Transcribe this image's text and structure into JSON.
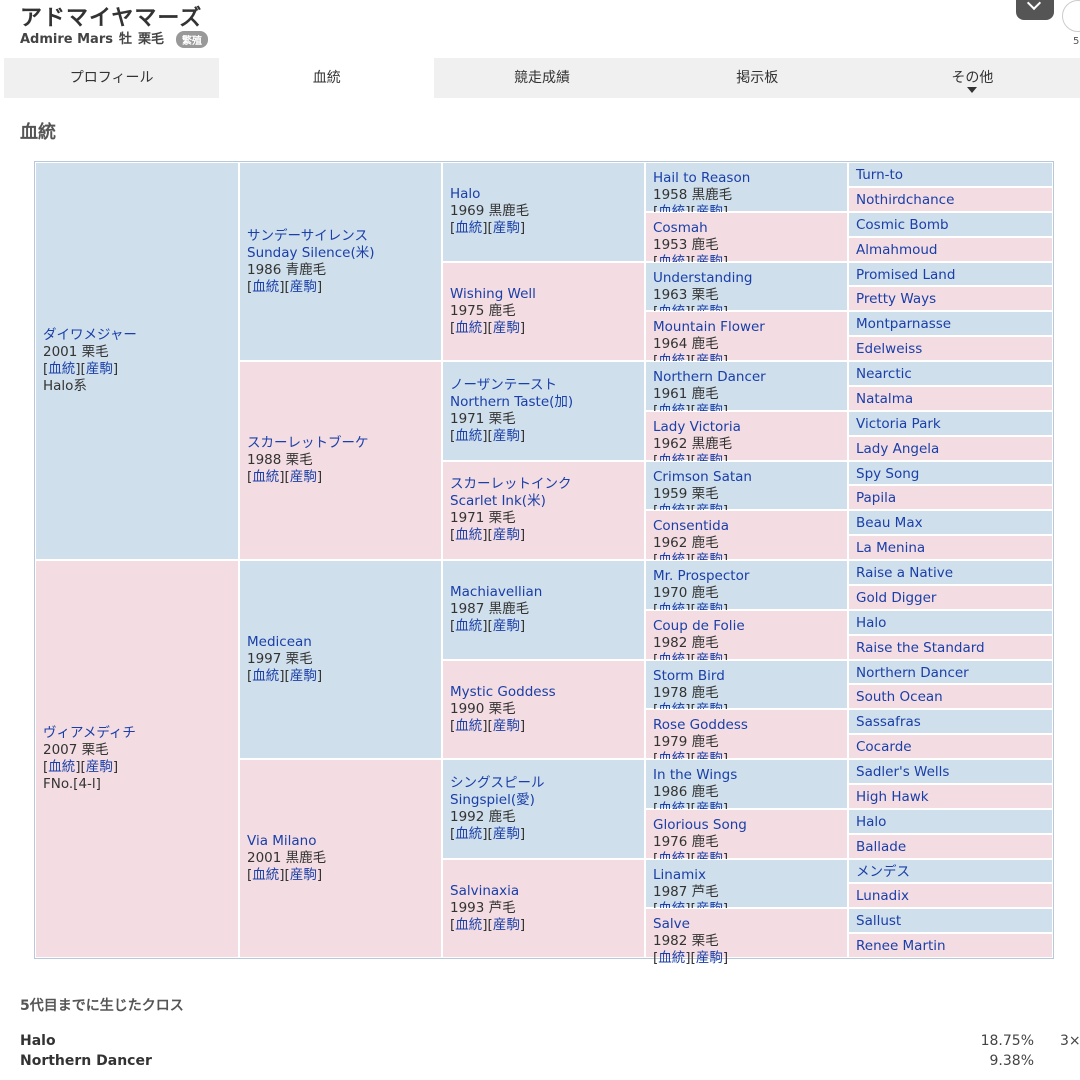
{
  "header": {
    "name_ja": "アドマイヤマーズ",
    "name_en": "Admire Mars",
    "sex": "牡",
    "color": "栗毛",
    "badge": "繁殖",
    "side_number": "5"
  },
  "tabs": [
    {
      "label": "プロフィール"
    },
    {
      "label": "血統"
    },
    {
      "label": "競走成績"
    },
    {
      "label": "掲示板"
    },
    {
      "label": "その他"
    }
  ],
  "section_title": "血統",
  "link_labels": {
    "pedigree": "血統",
    "progeny": "産駒"
  },
  "pedigree": {
    "g1": [
      {
        "name": "ダイワメジャー",
        "year_color": "2001 栗毛",
        "extra": "Halo系",
        "color": "blue"
      },
      {
        "name": "ヴィアメディチ",
        "year_color": "2007 栗毛",
        "extra": "FNo.[4-l]",
        "color": "pink"
      }
    ],
    "g2": [
      {
        "name": "サンデーサイレンス",
        "name2": "Sunday Silence(米)",
        "year_color": "1986 青鹿毛",
        "color": "blue"
      },
      {
        "name": "スカーレットブーケ",
        "year_color": "1988 栗毛",
        "color": "pink"
      },
      {
        "name": "Medicean",
        "year_color": "1997 栗毛",
        "color": "blue"
      },
      {
        "name": "Via Milano",
        "year_color": "2001 黒鹿毛",
        "color": "pink"
      }
    ],
    "g3": [
      {
        "name": "Halo",
        "year_color": "1969 黒鹿毛",
        "color": "blue"
      },
      {
        "name": "Wishing Well",
        "year_color": "1975 鹿毛",
        "color": "pink"
      },
      {
        "name": "ノーザンテースト",
        "name2": "Northern Taste(加)",
        "year_color": "1971 栗毛",
        "color": "blue"
      },
      {
        "name": "スカーレットインク",
        "name2": "Scarlet Ink(米)",
        "year_color": "1971 栗毛",
        "color": "pink"
      },
      {
        "name": "Machiavellian",
        "year_color": "1987 黒鹿毛",
        "color": "blue"
      },
      {
        "name": "Mystic Goddess",
        "year_color": "1990 栗毛",
        "color": "pink"
      },
      {
        "name": "シングスピール",
        "name2": "Singspiel(愛)",
        "year_color": "1992 鹿毛",
        "color": "blue"
      },
      {
        "name": "Salvinaxia",
        "year_color": "1993 芦毛",
        "color": "pink"
      }
    ],
    "g4": [
      {
        "name": "Hail to Reason",
        "year_color": "1958 黒鹿毛",
        "color": "blue"
      },
      {
        "name": "Cosmah",
        "year_color": "1953 鹿毛",
        "color": "pink"
      },
      {
        "name": "Understanding",
        "year_color": "1963 栗毛",
        "color": "blue"
      },
      {
        "name": "Mountain Flower",
        "year_color": "1964 鹿毛",
        "color": "pink"
      },
      {
        "name": "Northern Dancer",
        "year_color": "1961 鹿毛",
        "color": "blue"
      },
      {
        "name": "Lady Victoria",
        "year_color": "1962 黒鹿毛",
        "color": "pink"
      },
      {
        "name": "Crimson Satan",
        "year_color": "1959 栗毛",
        "color": "blue"
      },
      {
        "name": "Consentida",
        "year_color": "1962 鹿毛",
        "color": "pink"
      },
      {
        "name": "Mr. Prospector",
        "year_color": "1970 鹿毛",
        "color": "blue"
      },
      {
        "name": "Coup de Folie",
        "year_color": "1982 鹿毛",
        "color": "pink"
      },
      {
        "name": "Storm Bird",
        "year_color": "1978 鹿毛",
        "color": "blue"
      },
      {
        "name": "Rose Goddess",
        "year_color": "1979 鹿毛",
        "color": "pink"
      },
      {
        "name": "In the Wings",
        "year_color": "1986 鹿毛",
        "color": "blue"
      },
      {
        "name": "Glorious Song",
        "year_color": "1976 鹿毛",
        "color": "pink"
      },
      {
        "name": "Linamix",
        "year_color": "1987 芦毛",
        "color": "blue"
      },
      {
        "name": "Salve",
        "year_color": "1982 栗毛",
        "color": "pink"
      }
    ],
    "g5": [
      {
        "name": "Turn-to",
        "color": "blue"
      },
      {
        "name": "Nothirdchance",
        "color": "pink"
      },
      {
        "name": "Cosmic Bomb",
        "color": "blue"
      },
      {
        "name": "Almahmoud",
        "color": "pink"
      },
      {
        "name": "Promised Land",
        "color": "blue"
      },
      {
        "name": "Pretty Ways",
        "color": "pink"
      },
      {
        "name": "Montparnasse",
        "color": "blue"
      },
      {
        "name": "Edelweiss",
        "color": "pink"
      },
      {
        "name": "Nearctic",
        "color": "blue"
      },
      {
        "name": "Natalma",
        "color": "pink"
      },
      {
        "name": "Victoria Park",
        "color": "blue"
      },
      {
        "name": "Lady Angela",
        "color": "pink"
      },
      {
        "name": "Spy Song",
        "color": "blue"
      },
      {
        "name": "Papila",
        "color": "pink"
      },
      {
        "name": "Beau Max",
        "color": "blue"
      },
      {
        "name": "La Menina",
        "color": "pink"
      },
      {
        "name": "Raise a Native",
        "color": "blue"
      },
      {
        "name": "Gold Digger",
        "color": "pink"
      },
      {
        "name": "Halo",
        "color": "blue"
      },
      {
        "name": "Raise the Standard",
        "color": "pink"
      },
      {
        "name": "Northern Dancer",
        "color": "blue"
      },
      {
        "name": "South Ocean",
        "color": "pink"
      },
      {
        "name": "Sassafras",
        "color": "blue"
      },
      {
        "name": "Cocarde",
        "color": "pink"
      },
      {
        "name": "Sadler's Wells",
        "color": "blue"
      },
      {
        "name": "High Hawk",
        "color": "pink"
      },
      {
        "name": "Halo",
        "color": "blue"
      },
      {
        "name": "Ballade",
        "color": "pink"
      },
      {
        "name": "メンデス",
        "color": "blue"
      },
      {
        "name": "Lunadix",
        "color": "pink"
      },
      {
        "name": "Sallust",
        "color": "blue"
      },
      {
        "name": "Renee Martin",
        "color": "pink"
      }
    ]
  },
  "crosses": {
    "title": "5代目までに生じたクロス",
    "rows": [
      {
        "name": "Halo",
        "percent": "18.75%",
        "gen": "3×"
      },
      {
        "name": "Northern Dancer",
        "percent": "9.38%",
        "gen": ""
      }
    ]
  },
  "colors": {
    "blue_cell": "#cfdfec",
    "pink_cell": "#f3dce2",
    "link": "#1a3fa8"
  }
}
